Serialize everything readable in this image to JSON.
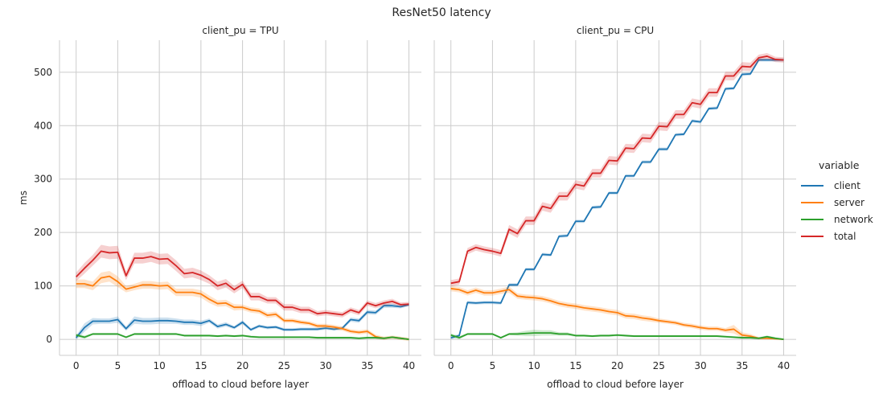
{
  "chart_data": {
    "type": "line",
    "title": "ResNet50 latency",
    "ylabel": "ms",
    "xlabel": "offload to cloud before layer",
    "xlim": [
      -2,
      41.5
    ],
    "ylim": [
      -30,
      560
    ],
    "xticks": [
      0,
      5,
      10,
      15,
      20,
      25,
      30,
      35,
      40
    ],
    "yticks": [
      0,
      100,
      200,
      300,
      400,
      500
    ],
    "grid": true,
    "legend": {
      "title": "variable",
      "placement": "right",
      "entries": [
        "client",
        "server",
        "network",
        "total"
      ]
    },
    "colors": {
      "client": "#1f77b4",
      "server": "#ff7f0e",
      "network": "#2ca02c",
      "total": "#d62728"
    },
    "panels": [
      {
        "title": "client_pu = TPU",
        "x": [
          0,
          1,
          2,
          3,
          4,
          5,
          6,
          7,
          8,
          9,
          10,
          11,
          12,
          13,
          14,
          15,
          16,
          17,
          18,
          19,
          20,
          21,
          22,
          23,
          24,
          25,
          26,
          27,
          28,
          29,
          30,
          31,
          32,
          33,
          34,
          35,
          36,
          37,
          38,
          39,
          40
        ],
        "series": [
          {
            "name": "client",
            "values": [
              3,
              22,
              34,
              34,
              34,
              37,
              20,
              36,
              34,
              34,
              35,
              35,
              34,
              32,
              32,
              30,
              35,
              24,
              28,
              22,
              32,
              18,
              25,
              22,
              23,
              18,
              18,
              19,
              19,
              19,
              21,
              19,
              21,
              37,
              35,
              51,
              50,
              63,
              63,
              61,
              65
            ],
            "band": [
              4,
              8,
              6,
              5,
              5,
              6,
              4,
              7,
              6,
              6,
              6,
              6,
              5,
              5,
              5,
              5,
              4,
              4,
              4,
              3,
              4,
              3,
              3,
              3,
              3,
              3,
              3,
              3,
              3,
              3,
              3,
              3,
              3,
              4,
              4,
              4,
              4,
              4,
              4,
              3,
              3
            ]
          },
          {
            "name": "server",
            "values": [
              104,
              104,
              100,
              115,
              118,
              108,
              94,
              98,
              102,
              102,
              100,
              101,
              88,
              88,
              88,
              85,
              75,
              67,
              68,
              60,
              60,
              55,
              53,
              45,
              47,
              35,
              35,
              32,
              30,
              25,
              25,
              23,
              20,
              15,
              13,
              15,
              5,
              2,
              4,
              2,
              0
            ],
            "band": [
              8,
              8,
              8,
              10,
              10,
              10,
              6,
              6,
              7,
              7,
              7,
              7,
              7,
              7,
              7,
              7,
              7,
              6,
              6,
              6,
              5,
              5,
              5,
              5,
              5,
              4,
              4,
              4,
              4,
              4,
              4,
              4,
              4,
              4,
              4,
              4,
              4,
              3,
              3,
              3,
              3
            ]
          },
          {
            "name": "network",
            "values": [
              8,
              4,
              10,
              10,
              10,
              10,
              4,
              10,
              10,
              10,
              10,
              10,
              10,
              7,
              7,
              7,
              7,
              6,
              7,
              6,
              7,
              5,
              4,
              4,
              4,
              4,
              4,
              4,
              4,
              3,
              3,
              3,
              3,
              3,
              2,
              3,
              3,
              2,
              4,
              2,
              0
            ],
            "band": [
              3,
              3,
              2,
              2,
              2,
              2,
              2,
              2,
              2,
              2,
              2,
              2,
              2,
              2,
              2,
              2,
              2,
              2,
              2,
              2,
              2,
              2,
              2,
              2,
              2,
              2,
              2,
              2,
              2,
              2,
              2,
              2,
              2,
              2,
              2,
              2,
              2,
              2,
              2,
              2,
              1
            ]
          },
          {
            "name": "total",
            "values": [
              117,
              133,
              148,
              165,
              162,
              163,
              119,
              152,
              152,
              155,
              150,
              151,
              138,
              123,
              125,
              120,
              112,
              100,
              105,
              93,
              103,
              80,
              80,
              73,
              73,
              60,
              60,
              55,
              55,
              48,
              50,
              48,
              46,
              55,
              50,
              68,
              63,
              68,
              71,
              65,
              66
            ],
            "band": [
              8,
              10,
              10,
              12,
              12,
              12,
              8,
              10,
              10,
              10,
              10,
              10,
              10,
              9,
              9,
              9,
              8,
              8,
              8,
              7,
              7,
              7,
              7,
              6,
              6,
              6,
              6,
              6,
              6,
              5,
              5,
              5,
              5,
              5,
              5,
              5,
              5,
              5,
              5,
              4,
              4
            ]
          }
        ]
      },
      {
        "title": "client_pu = CPU",
        "x": [
          0,
          1,
          2,
          3,
          4,
          5,
          6,
          7,
          8,
          9,
          10,
          11,
          12,
          13,
          14,
          15,
          16,
          17,
          18,
          19,
          20,
          21,
          22,
          23,
          24,
          25,
          26,
          27,
          28,
          29,
          30,
          31,
          32,
          33,
          34,
          35,
          36,
          37,
          38,
          39,
          40
        ],
        "series": [
          {
            "name": "client",
            "values": [
              3,
              7,
              69,
              68,
              69,
              69,
              68,
              102,
              102,
              131,
              131,
              159,
              158,
              193,
              194,
              221,
              221,
              247,
              248,
              274,
              274,
              306,
              306,
              332,
              332,
              356,
              356,
              383,
              384,
              409,
              407,
              432,
              433,
              469,
              470,
              496,
              497,
              523,
              523,
              523,
              523
            ],
            "band": [
              3,
              3,
              3,
              3,
              3,
              3,
              3,
              3,
              3,
              3,
              3,
              3,
              3,
              3,
              3,
              3,
              3,
              3,
              3,
              3,
              3,
              3,
              3,
              3,
              3,
              3,
              3,
              3,
              3,
              3,
              3,
              3,
              3,
              3,
              3,
              3,
              3,
              3,
              3,
              3,
              3
            ]
          },
          {
            "name": "server",
            "values": [
              95,
              93,
              87,
              92,
              87,
              87,
              90,
              93,
              81,
              79,
              78,
              76,
              72,
              67,
              64,
              62,
              59,
              57,
              55,
              52,
              50,
              44,
              43,
              40,
              38,
              35,
              33,
              31,
              27,
              25,
              22,
              20,
              20,
              17,
              19,
              8,
              6,
              2,
              2,
              1,
              0
            ],
            "band": [
              5,
              5,
              5,
              5,
              5,
              5,
              5,
              6,
              5,
              5,
              5,
              5,
              5,
              5,
              5,
              5,
              5,
              5,
              5,
              5,
              5,
              5,
              5,
              5,
              5,
              4,
              4,
              4,
              4,
              4,
              4,
              4,
              4,
              4,
              8,
              5,
              4,
              2,
              2,
              1,
              1
            ]
          },
          {
            "name": "network",
            "values": [
              8,
              3,
              10,
              10,
              10,
              10,
              3,
              10,
              10,
              11,
              12,
              12,
              12,
              10,
              10,
              7,
              7,
              6,
              7,
              7,
              8,
              7,
              6,
              6,
              6,
              6,
              6,
              6,
              6,
              6,
              6,
              6,
              6,
              5,
              4,
              3,
              3,
              2,
              5,
              2,
              0
            ],
            "band": [
              3,
              3,
              2,
              2,
              2,
              2,
              2,
              2,
              3,
              5,
              6,
              5,
              5,
              3,
              3,
              2,
              2,
              2,
              2,
              2,
              2,
              2,
              2,
              2,
              2,
              2,
              2,
              2,
              2,
              2,
              2,
              2,
              2,
              2,
              2,
              2,
              2,
              2,
              2,
              2,
              1
            ]
          },
          {
            "name": "total",
            "values": [
              105,
              108,
              165,
              172,
              168,
              165,
              161,
              206,
              198,
              222,
              222,
              249,
              245,
              268,
              268,
              290,
              287,
              311,
              311,
              335,
              334,
              358,
              357,
              377,
              376,
              399,
              398,
              421,
              421,
              443,
              440,
              462,
              462,
              493,
              493,
              511,
              510,
              527,
              530,
              524,
              523
            ],
            "band": [
              6,
              6,
              6,
              6,
              6,
              6,
              6,
              8,
              8,
              8,
              8,
              8,
              8,
              8,
              8,
              8,
              8,
              8,
              8,
              8,
              8,
              8,
              8,
              8,
              8,
              8,
              8,
              8,
              8,
              8,
              8,
              8,
              8,
              8,
              8,
              8,
              8,
              6,
              6,
              5,
              5
            ]
          }
        ]
      }
    ]
  }
}
